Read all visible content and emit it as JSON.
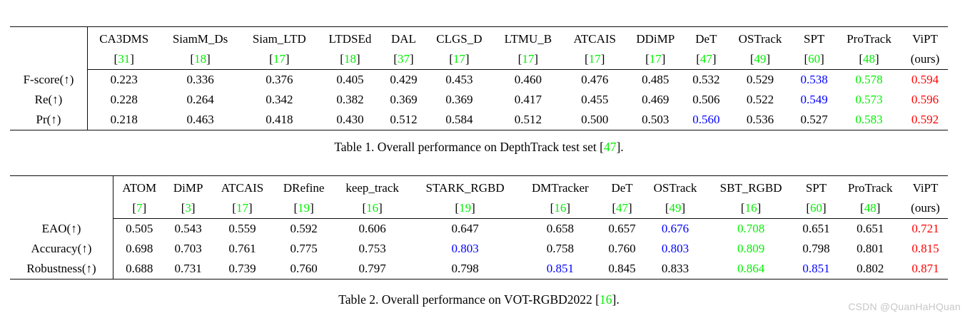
{
  "watermark": "CSDN @QuanHaHQuan",
  "colors": {
    "citation_green": "#00f000",
    "best_red": "#ff0000",
    "second_green": "#00f000",
    "third_blue": "#0000ff"
  },
  "tables": [
    {
      "name": "depthtrack-results",
      "columns": [
        {
          "name": "CA3DMS",
          "cite": "31"
        },
        {
          "name": "SiamM_Ds",
          "cite": "18"
        },
        {
          "name": "Siam_LTD",
          "cite": "17"
        },
        {
          "name": "LTDSEd",
          "cite": "18"
        },
        {
          "name": "DAL",
          "cite": "37"
        },
        {
          "name": "CLGS_D",
          "cite": "17"
        },
        {
          "name": "LTMU_B",
          "cite": "17"
        },
        {
          "name": "ATCAIS",
          "cite": "17"
        },
        {
          "name": "DDiMP",
          "cite": "17"
        },
        {
          "name": "DeT",
          "cite": "47"
        },
        {
          "name": "OSTrack",
          "cite": "49"
        },
        {
          "name": "SPT",
          "cite": "60"
        },
        {
          "name": "ProTrack",
          "cite": "48"
        },
        {
          "name": "ViPT",
          "sub": "(ours)",
          "ours": true
        }
      ],
      "rows": [
        {
          "label": "F-score(↑)",
          "values": [
            "0.223",
            "0.336",
            "0.376",
            "0.405",
            "0.429",
            "0.453",
            "0.460",
            "0.476",
            "0.485",
            "0.532",
            "0.529",
            "0.538",
            "0.578",
            "0.594"
          ],
          "styles": [
            "",
            "",
            "",
            "",
            "",
            "",
            "",
            "",
            "",
            "",
            "",
            "blue",
            "green",
            "red"
          ]
        },
        {
          "label": "Re(↑)",
          "values": [
            "0.228",
            "0.264",
            "0.342",
            "0.382",
            "0.369",
            "0.369",
            "0.417",
            "0.455",
            "0.469",
            "0.506",
            "0.522",
            "0.549",
            "0.573",
            "0.596"
          ],
          "styles": [
            "",
            "",
            "",
            "",
            "",
            "",
            "",
            "",
            "",
            "",
            "",
            "blue",
            "green",
            "red"
          ]
        },
        {
          "label": "Pr(↑)",
          "values": [
            "0.218",
            "0.463",
            "0.418",
            "0.430",
            "0.512",
            "0.584",
            "0.512",
            "0.500",
            "0.503",
            "0.560",
            "0.536",
            "0.527",
            "0.583",
            "0.592"
          ],
          "styles": [
            "",
            "",
            "",
            "",
            "",
            "",
            "",
            "",
            "",
            "blue",
            "",
            "",
            "green",
            "red"
          ]
        }
      ],
      "caption": {
        "pre": "Table 1. Overall performance on DepthTrack test set [",
        "cite": "47",
        "post": "]."
      }
    },
    {
      "name": "vot-rgbd2022-results",
      "columns": [
        {
          "name": "ATOM",
          "cite": "7"
        },
        {
          "name": "DiMP",
          "cite": "3"
        },
        {
          "name": "ATCAIS",
          "cite": "17"
        },
        {
          "name": "DRefine",
          "cite": "19"
        },
        {
          "name": "keep_track",
          "cite": "16"
        },
        {
          "name": "STARK_RGBD",
          "cite": "19"
        },
        {
          "name": "DMTracker",
          "cite": "16"
        },
        {
          "name": "DeT",
          "cite": "47"
        },
        {
          "name": "OSTrack",
          "cite": "49"
        },
        {
          "name": "SBT_RGBD",
          "cite": "16"
        },
        {
          "name": "SPT",
          "cite": "60"
        },
        {
          "name": "ProTrack",
          "cite": "48"
        },
        {
          "name": "ViPT",
          "sub": "(ours)",
          "ours": true
        }
      ],
      "rows": [
        {
          "label": "EAO(↑)",
          "values": [
            "0.505",
            "0.543",
            "0.559",
            "0.592",
            "0.606",
            "0.647",
            "0.658",
            "0.657",
            "0.676",
            "0.708",
            "0.651",
            "0.651",
            "0.721"
          ],
          "styles": [
            "",
            "",
            "",
            "",
            "",
            "",
            "",
            "",
            "blue",
            "green",
            "",
            "",
            "red"
          ]
        },
        {
          "label": "Accuracy(↑)",
          "values": [
            "0.698",
            "0.703",
            "0.761",
            "0.775",
            "0.753",
            "0.803",
            "0.758",
            "0.760",
            "0.803",
            "0.809",
            "0.798",
            "0.801",
            "0.815"
          ],
          "styles": [
            "",
            "",
            "",
            "",
            "",
            "blue",
            "",
            "",
            "blue",
            "green",
            "",
            "",
            "red"
          ]
        },
        {
          "label": "Robustness(↑)",
          "values": [
            "0.688",
            "0.731",
            "0.739",
            "0.760",
            "0.797",
            "0.798",
            "0.851",
            "0.845",
            "0.833",
            "0.864",
            "0.851",
            "0.802",
            "0.871"
          ],
          "styles": [
            "",
            "",
            "",
            "",
            "",
            "",
            "blue",
            "",
            "",
            "green",
            "blue",
            "",
            "red"
          ]
        }
      ],
      "caption": {
        "pre": "Table 2. Overall performance on VOT-RGBD2022 [",
        "cite": "16",
        "post": "]."
      }
    }
  ]
}
